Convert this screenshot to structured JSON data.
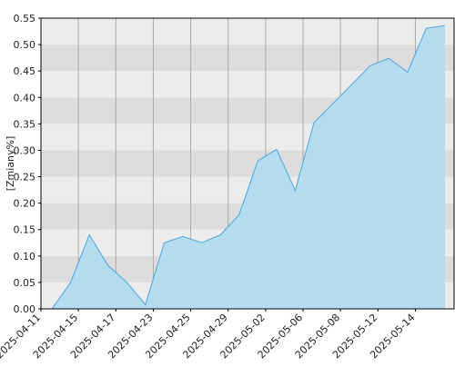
{
  "chart_data": {
    "type": "area",
    "y_label": "[Zmiany%]",
    "categories": [
      "2025-04-11",
      null,
      "2025-04-15",
      null,
      "2025-04-17",
      null,
      "2025-04-23",
      null,
      "2025-04-25",
      null,
      "2025-04-29",
      null,
      "2025-05-02",
      null,
      "2025-05-06",
      null,
      "2025-05-08",
      null,
      "2025-05-12",
      null,
      "2025-05-14",
      null
    ],
    "values": [
      0,
      0.05,
      0.14,
      0.082,
      0.05,
      0.008,
      0.125,
      0.137,
      0.125,
      0.14,
      0.178,
      0.28,
      0.302,
      0.224,
      0.352,
      0.388,
      0.424,
      0.46,
      0.474,
      0.448,
      0.531,
      0.536
    ],
    "color": "#4da6e0",
    "fill": "#b4dcee",
    "ylim": [
      0,
      0.55
    ],
    "yticks": [
      {
        "value": 0,
        "label": "0.00"
      },
      {
        "value": 0.05,
        "label": "0.05"
      },
      {
        "value": 0.1,
        "label": "0.10"
      },
      {
        "value": 0.15,
        "label": "0.15"
      },
      {
        "value": 0.2,
        "label": "0.20"
      },
      {
        "value": 0.25,
        "label": "0.25"
      },
      {
        "value": 0.3,
        "label": "0.30"
      },
      {
        "value": 0.35,
        "label": "0.35"
      },
      {
        "value": 0.4,
        "label": "0.40"
      },
      {
        "value": 0.45,
        "label": "0.45"
      },
      {
        "value": 0.5,
        "label": "0.50"
      },
      {
        "value": 0.55,
        "label": "0.55"
      }
    ],
    "grid": true
  }
}
